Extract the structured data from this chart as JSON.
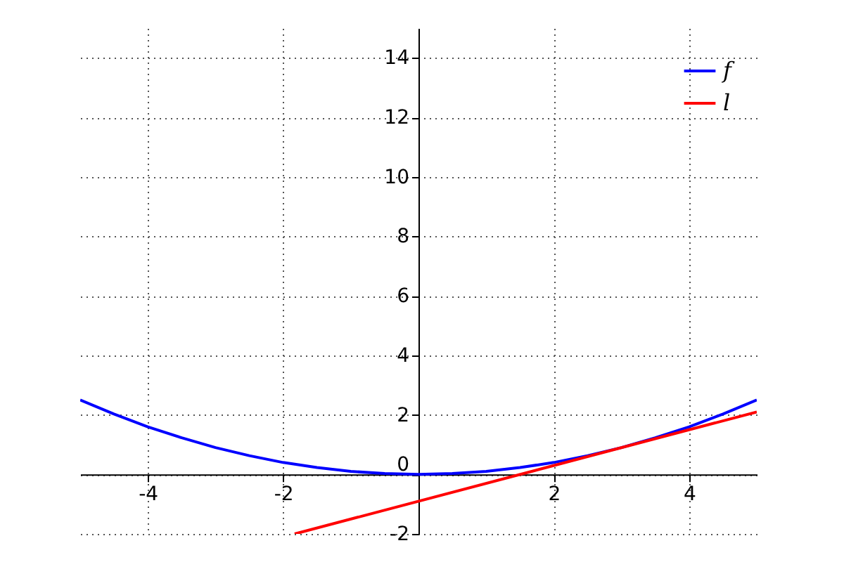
{
  "chart_data": {
    "type": "line",
    "xlim": [
      -5,
      5
    ],
    "ylim": [
      -2,
      15
    ],
    "xticks": [
      -4,
      -2,
      2,
      4
    ],
    "yticks": [
      -2,
      0,
      2,
      4,
      6,
      8,
      10,
      12,
      14
    ],
    "grid": true,
    "legend": "top right",
    "line_style": "solid",
    "marker": "none",
    "series": [
      {
        "name": "f",
        "color": "#0000ff",
        "x": [
          -5,
          -4.5,
          -4,
          -3.5,
          -3,
          -2.5,
          -2,
          -1.5,
          -1,
          -0.5,
          0,
          0.5,
          1,
          1.5,
          2,
          2.5,
          3,
          3.5,
          4,
          4.5,
          5
        ],
        "values": [
          2.5,
          2.03,
          1.6,
          1.23,
          0.9,
          0.63,
          0.4,
          0.23,
          0.1,
          0.03,
          0,
          0.03,
          0.1,
          0.23,
          0.4,
          0.63,
          0.9,
          1.23,
          1.6,
          2.03,
          2.5
        ]
      },
      {
        "name": "l",
        "color": "#ff0000",
        "x": [
          -1.83,
          5
        ],
        "values": [
          -2,
          2.1
        ]
      }
    ]
  }
}
